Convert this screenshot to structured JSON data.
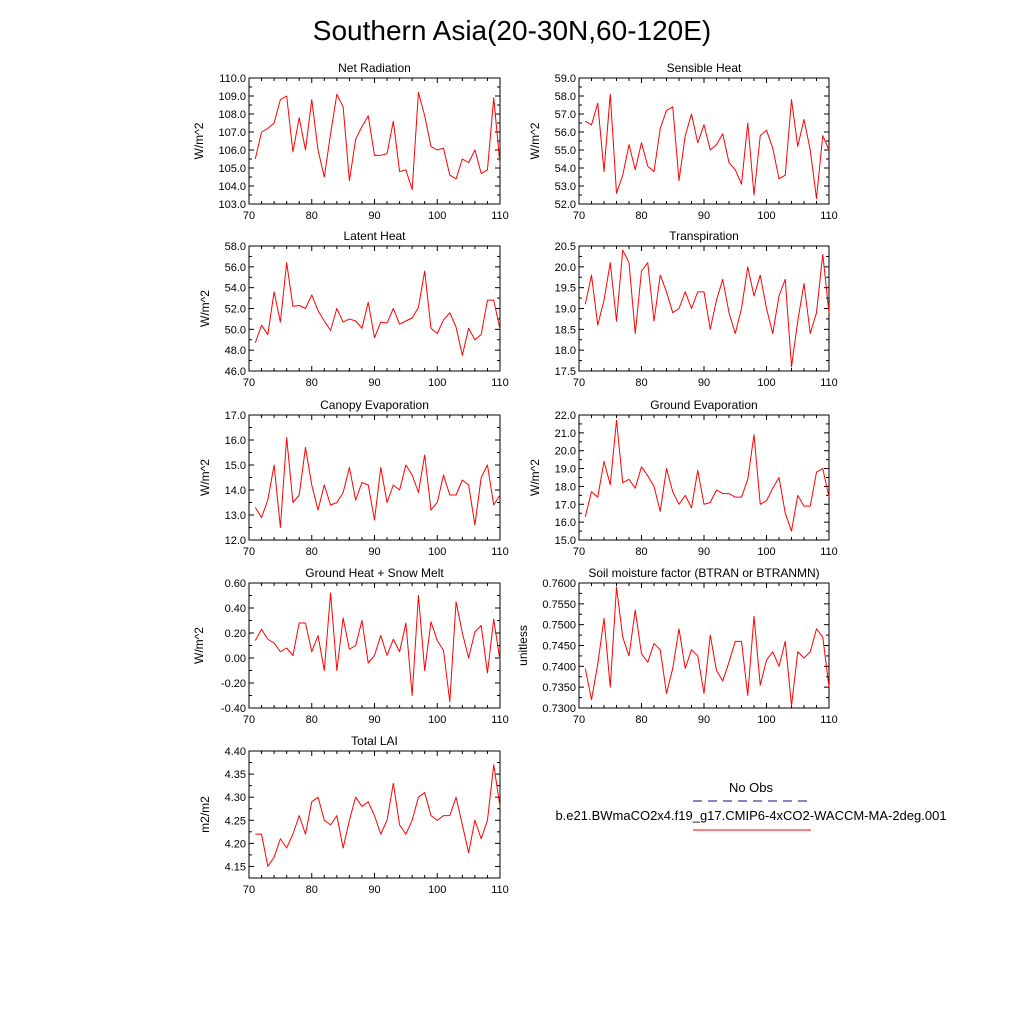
{
  "title": "Southern Asia(20-30N,60-120E)",
  "legend": {
    "obs_label": "No Obs",
    "obs_color": "#3a3aa8",
    "case_label": "b.e21.BWmaCO2x4.f19_g17.CMIP6-4xCO2-WACCM-MA-2deg.001",
    "case_color": "#ff0000"
  },
  "line_color": "#ff0000",
  "x": [
    71,
    72,
    73,
    74,
    75,
    76,
    77,
    78,
    79,
    80,
    81,
    82,
    83,
    84,
    85,
    86,
    87,
    88,
    89,
    90,
    91,
    92,
    93,
    94,
    95,
    96,
    97,
    98,
    99,
    100,
    101,
    102,
    103,
    104,
    105,
    106,
    107,
    108,
    109,
    110
  ],
  "chart_data": [
    {
      "type": "line",
      "title": "Net Radiation",
      "xlabel": "",
      "ylabel": "W/m^2",
      "xlim": [
        70,
        110
      ],
      "ylim": [
        103.0,
        110.0
      ],
      "xticks": [
        70,
        80,
        90,
        100,
        110
      ],
      "yticks": [
        "103.0",
        "104.0",
        "105.0",
        "106.0",
        "107.0",
        "108.0",
        "109.0",
        "110.0"
      ],
      "values": [
        105.5,
        107.0,
        107.2,
        107.5,
        108.8,
        109.0,
        105.9,
        107.8,
        106.0,
        108.8,
        106.0,
        104.5,
        106.9,
        109.1,
        108.4,
        104.3,
        106.6,
        107.3,
        107.9,
        105.7,
        105.7,
        105.8,
        107.6,
        104.8,
        104.9,
        103.8,
        109.2,
        107.9,
        106.2,
        106.0,
        106.1,
        104.6,
        104.4,
        105.5,
        105.3,
        106.0,
        104.7,
        104.9,
        108.9,
        105.2
      ]
    },
    {
      "type": "line",
      "title": "Sensible Heat",
      "xlabel": "",
      "ylabel": "W/m^2",
      "xlim": [
        70,
        110
      ],
      "ylim": [
        52.0,
        59.0
      ],
      "xticks": [
        70,
        80,
        90,
        100,
        110
      ],
      "yticks": [
        "52.0",
        "53.0",
        "54.0",
        "55.0",
        "56.0",
        "57.0",
        "58.0",
        "59.0"
      ],
      "values": [
        56.6,
        56.4,
        57.6,
        53.8,
        58.1,
        52.6,
        53.6,
        55.3,
        53.9,
        55.4,
        54.1,
        53.8,
        56.2,
        57.2,
        57.4,
        53.3,
        55.8,
        57.0,
        55.4,
        56.4,
        55.0,
        55.3,
        55.9,
        54.3,
        53.9,
        53.1,
        56.5,
        52.5,
        55.8,
        56.1,
        55.1,
        53.4,
        53.6,
        57.8,
        55.2,
        56.7,
        55.0,
        52.3,
        55.8,
        55.0
      ]
    },
    {
      "type": "line",
      "title": "Latent Heat",
      "xlabel": "",
      "ylabel": "W/m^2",
      "xlim": [
        70,
        110
      ],
      "ylim": [
        46.0,
        58.0
      ],
      "xticks": [
        70,
        80,
        90,
        100,
        110
      ],
      "yticks": [
        "46.0",
        "48.0",
        "50.0",
        "52.0",
        "54.0",
        "56.0",
        "58.0"
      ],
      "values": [
        48.7,
        50.4,
        49.5,
        53.6,
        50.7,
        56.4,
        52.2,
        52.3,
        52.0,
        53.3,
        51.8,
        50.8,
        49.9,
        52.0,
        50.7,
        51.0,
        50.8,
        50.1,
        52.6,
        49.2,
        50.7,
        50.6,
        52.0,
        50.5,
        50.8,
        51.1,
        52.1,
        55.6,
        50.1,
        49.6,
        50.9,
        51.6,
        50.2,
        47.5,
        50.1,
        49.0,
        49.5,
        52.8,
        52.8,
        50.0
      ]
    },
    {
      "type": "line",
      "title": "Transpiration",
      "xlabel": "",
      "ylabel": "",
      "xlim": [
        70,
        110
      ],
      "ylim": [
        17.5,
        20.5
      ],
      "xticks": [
        70,
        80,
        90,
        100,
        110
      ],
      "yticks": [
        "17.5",
        "18.0",
        "18.5",
        "19.0",
        "19.5",
        "20.0",
        "20.5"
      ],
      "values": [
        19.1,
        19.8,
        18.6,
        19.2,
        20.1,
        18.7,
        20.4,
        20.1,
        18.4,
        19.9,
        20.1,
        18.7,
        19.8,
        19.4,
        18.9,
        19.0,
        19.4,
        19.0,
        19.4,
        19.4,
        18.5,
        19.2,
        19.7,
        18.9,
        18.4,
        19.0,
        20.0,
        19.3,
        19.8,
        19.0,
        18.4,
        19.3,
        19.7,
        17.6,
        18.7,
        19.6,
        18.4,
        18.9,
        20.3,
        18.9
      ]
    },
    {
      "type": "line",
      "title": "Canopy Evaporation",
      "xlabel": "",
      "ylabel": "W/m^2",
      "xlim": [
        70,
        110
      ],
      "ylim": [
        12.0,
        17.0
      ],
      "xticks": [
        70,
        80,
        90,
        100,
        110
      ],
      "yticks": [
        "12.0",
        "13.0",
        "14.0",
        "15.0",
        "16.0",
        "17.0"
      ],
      "values": [
        13.3,
        12.9,
        13.6,
        15.0,
        12.5,
        16.1,
        13.5,
        13.8,
        15.7,
        14.2,
        13.2,
        14.2,
        13.4,
        13.5,
        13.9,
        14.9,
        13.6,
        14.3,
        14.2,
        12.8,
        14.9,
        13.5,
        14.2,
        14.0,
        15.0,
        14.6,
        13.9,
        15.4,
        13.2,
        13.5,
        14.6,
        13.8,
        13.8,
        14.4,
        14.2,
        12.6,
        14.5,
        15.0,
        13.4,
        13.8
      ]
    },
    {
      "type": "line",
      "title": "Ground Evaporation",
      "xlabel": "",
      "ylabel": "W/m^2",
      "xlim": [
        70,
        110
      ],
      "ylim": [
        15.0,
        22.0
      ],
      "xticks": [
        70,
        80,
        90,
        100,
        110
      ],
      "yticks": [
        "15.0",
        "16.0",
        "17.0",
        "18.0",
        "19.0",
        "20.0",
        "21.0",
        "22.0"
      ],
      "values": [
        16.3,
        17.7,
        17.4,
        19.4,
        18.1,
        21.7,
        18.2,
        18.4,
        17.9,
        19.1,
        18.6,
        18.0,
        16.6,
        19.0,
        17.7,
        17.0,
        17.5,
        16.8,
        18.9,
        17.0,
        17.1,
        17.8,
        17.6,
        17.6,
        17.4,
        17.4,
        18.4,
        20.9,
        17.0,
        17.2,
        17.9,
        18.5,
        16.5,
        15.5,
        17.5,
        16.9,
        16.9,
        18.8,
        19.0,
        17.4
      ]
    },
    {
      "type": "line",
      "title": "Ground Heat + Snow Melt",
      "xlabel": "",
      "ylabel": "W/m^2",
      "xlim": [
        70,
        110
      ],
      "ylim": [
        -0.4,
        0.6
      ],
      "xticks": [
        70,
        80,
        90,
        100,
        110
      ],
      "yticks": [
        "-0.40",
        "-0.20",
        "0.00",
        "0.20",
        "0.40",
        "0.60"
      ],
      "values": [
        0.14,
        0.23,
        0.15,
        0.12,
        0.05,
        0.08,
        0.02,
        0.28,
        0.28,
        0.05,
        0.18,
        -0.1,
        0.52,
        -0.1,
        0.32,
        0.07,
        0.1,
        0.3,
        -0.04,
        0.02,
        0.18,
        0.02,
        0.15,
        0.05,
        0.28,
        -0.3,
        0.5,
        -0.1,
        0.29,
        0.14,
        0.06,
        -0.35,
        0.45,
        0.2,
        0.0,
        0.21,
        0.26,
        -0.12,
        0.31,
        -0.02
      ]
    },
    {
      "type": "line",
      "title": "Soil moisture factor (BTRAN or BTRANMN)",
      "xlabel": "",
      "ylabel": "unitless",
      "xlim": [
        70,
        110
      ],
      "ylim": [
        0.73,
        0.76
      ],
      "xticks": [
        70,
        80,
        90,
        100,
        110
      ],
      "yticks": [
        "0.7300",
        "0.7350",
        "0.7400",
        "0.7450",
        "0.7500",
        "0.7550",
        "0.7600"
      ],
      "values": [
        0.7395,
        0.732,
        0.7405,
        0.7515,
        0.735,
        0.759,
        0.747,
        0.7425,
        0.7535,
        0.743,
        0.741,
        0.7455,
        0.744,
        0.7335,
        0.7395,
        0.749,
        0.7395,
        0.744,
        0.7425,
        0.7335,
        0.7475,
        0.739,
        0.7365,
        0.741,
        0.746,
        0.746,
        0.733,
        0.752,
        0.7355,
        0.7415,
        0.7435,
        0.74,
        0.746,
        0.7305,
        0.7435,
        0.742,
        0.7435,
        0.749,
        0.747,
        0.735
      ]
    },
    {
      "type": "line",
      "title": "Total LAI",
      "xlabel": "",
      "ylabel": "m2/m2",
      "xlim": [
        70,
        110
      ],
      "ylim": [
        4.125,
        4.4
      ],
      "xticks": [
        70,
        80,
        90,
        100,
        110
      ],
      "yticks": [
        "4.15",
        "4.20",
        "4.25",
        "4.30",
        "4.35",
        "4.40"
      ],
      "values": [
        4.22,
        4.22,
        4.15,
        4.17,
        4.21,
        4.19,
        4.22,
        4.26,
        4.22,
        4.29,
        4.3,
        4.25,
        4.24,
        4.26,
        4.19,
        4.25,
        4.3,
        4.28,
        4.29,
        4.26,
        4.22,
        4.25,
        4.33,
        4.24,
        4.22,
        4.25,
        4.3,
        4.31,
        4.26,
        4.25,
        4.26,
        4.26,
        4.3,
        4.24,
        4.18,
        4.25,
        4.21,
        4.25,
        4.37,
        4.28
      ]
    }
  ]
}
